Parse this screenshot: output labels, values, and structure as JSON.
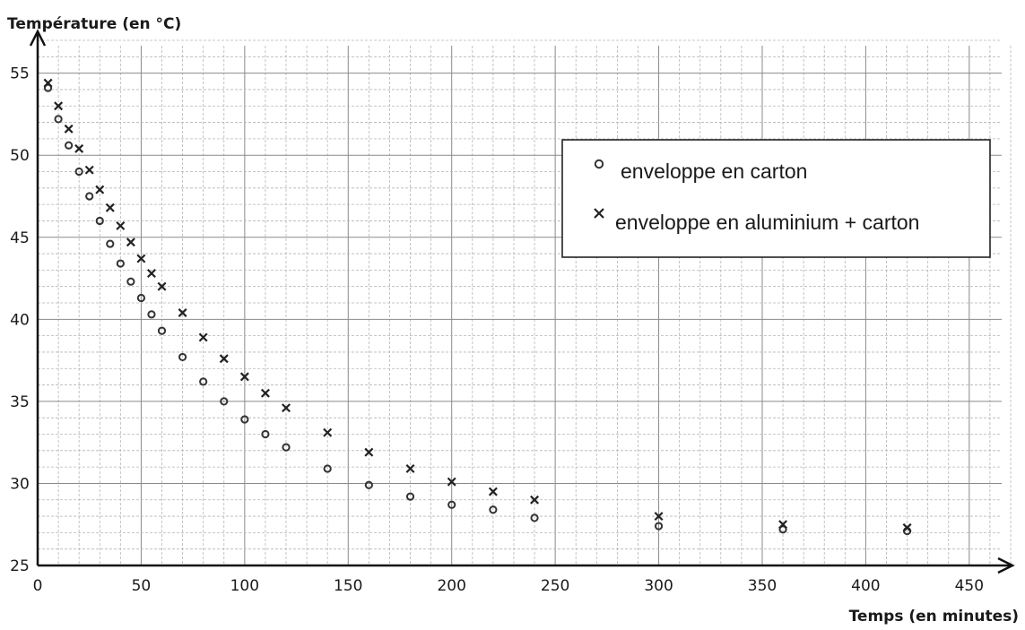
{
  "chart_data": {
    "type": "scatter",
    "title": "",
    "ylabel": "Température (en °C)",
    "xlabel": "Temps (en minutes)",
    "xlim": [
      0,
      470
    ],
    "ylim": [
      25,
      57
    ],
    "x_ticks": [
      0,
      50,
      100,
      150,
      200,
      250,
      300,
      350,
      400,
      450
    ],
    "y_ticks": [
      25,
      30,
      35,
      40,
      45,
      50,
      55
    ],
    "grid": true,
    "minor_grid": {
      "x_step": 10,
      "y_step": 1
    },
    "legend_position": "upper-right",
    "series": [
      {
        "name": "enveloppe en carton",
        "marker": "circle",
        "color": "#333333",
        "points": [
          [
            5,
            54.1
          ],
          [
            10,
            52.2
          ],
          [
            15,
            50.6
          ],
          [
            20,
            49.0
          ],
          [
            25,
            47.5
          ],
          [
            30,
            46.0
          ],
          [
            35,
            44.6
          ],
          [
            40,
            43.4
          ],
          [
            45,
            42.3
          ],
          [
            50,
            41.3
          ],
          [
            55,
            40.3
          ],
          [
            60,
            39.3
          ],
          [
            70,
            37.7
          ],
          [
            80,
            36.2
          ],
          [
            90,
            35.0
          ],
          [
            100,
            33.9
          ],
          [
            110,
            33.0
          ],
          [
            120,
            32.2
          ],
          [
            140,
            30.9
          ],
          [
            160,
            29.9
          ],
          [
            180,
            29.2
          ],
          [
            200,
            28.7
          ],
          [
            220,
            28.4
          ],
          [
            240,
            27.9
          ],
          [
            300,
            27.4
          ],
          [
            360,
            27.2
          ],
          [
            420,
            27.1
          ]
        ]
      },
      {
        "name": "enveloppe en aluminium + carton",
        "marker": "cross",
        "color": "#222222",
        "points": [
          [
            5,
            54.4
          ],
          [
            10,
            53.0
          ],
          [
            15,
            51.6
          ],
          [
            20,
            50.4
          ],
          [
            25,
            49.1
          ],
          [
            30,
            47.9
          ],
          [
            35,
            46.8
          ],
          [
            40,
            45.7
          ],
          [
            45,
            44.7
          ],
          [
            50,
            43.7
          ],
          [
            55,
            42.8
          ],
          [
            60,
            42.0
          ],
          [
            70,
            40.4
          ],
          [
            80,
            38.9
          ],
          [
            90,
            37.6
          ],
          [
            100,
            36.5
          ],
          [
            110,
            35.5
          ],
          [
            120,
            34.6
          ],
          [
            140,
            33.1
          ],
          [
            160,
            31.9
          ],
          [
            180,
            30.9
          ],
          [
            200,
            30.1
          ],
          [
            220,
            29.5
          ],
          [
            240,
            29.0
          ],
          [
            300,
            28.0
          ],
          [
            360,
            27.5
          ],
          [
            420,
            27.3
          ]
        ]
      }
    ]
  }
}
